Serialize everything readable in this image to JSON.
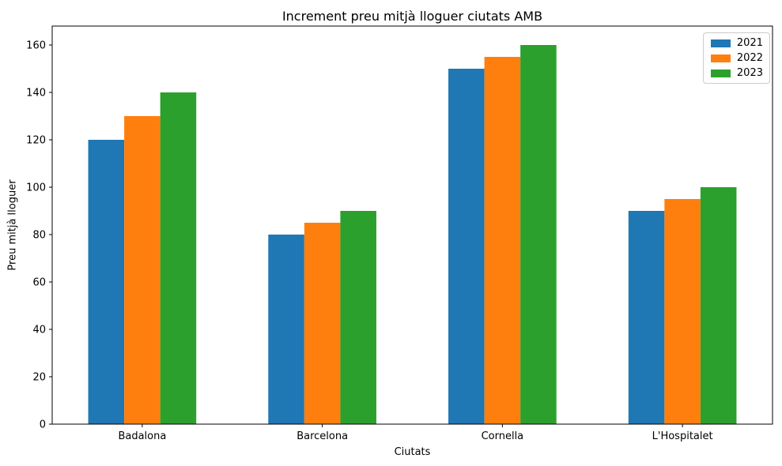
{
  "figure": {
    "background": "#ffffff"
  },
  "chart_data": {
    "type": "bar",
    "title": "Increment preu mitjà lloguer ciutats AMB",
    "xlabel": "Ciutats",
    "ylabel": "Preu mitjà lloguer",
    "categories": [
      "Badalona",
      "Barcelona",
      "Cornella",
      "L'Hospitalet"
    ],
    "series": [
      {
        "name": "2021",
        "color": "#1f77b4",
        "values": [
          120,
          80,
          150,
          90
        ]
      },
      {
        "name": "2022",
        "color": "#ff7f0e",
        "values": [
          130,
          85,
          155,
          95
        ]
      },
      {
        "name": "2023",
        "color": "#2ca02c",
        "values": [
          140,
          90,
          160,
          100
        ]
      }
    ],
    "ylim": [
      0,
      168
    ],
    "yticks": [
      0,
      20,
      40,
      60,
      80,
      100,
      120,
      140,
      160
    ],
    "legend_position": "upper right",
    "grid": false,
    "axis_color": "#000000"
  }
}
